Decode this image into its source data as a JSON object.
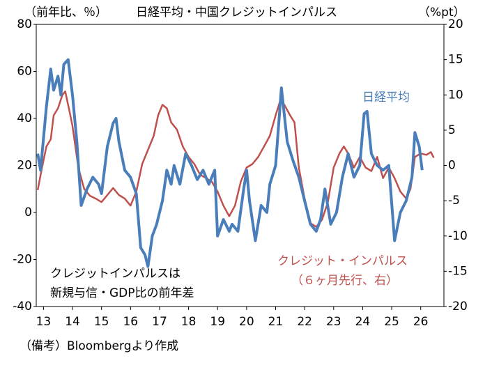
{
  "chart_data": {
    "type": "line",
    "title": "日経平均・中国クレジットインパルス",
    "y_label": "（前年比、％）",
    "y2_label": "（%pt）",
    "xlim": [
      12.75,
      26.8
    ],
    "xticks": [
      13,
      14,
      15,
      16,
      17,
      18,
      19,
      20,
      21,
      22,
      23,
      24,
      25,
      26
    ],
    "ylim": [
      -40,
      80
    ],
    "yticks": [
      -40,
      -20,
      0,
      20,
      40,
      60,
      80
    ],
    "y2lim": [
      -20,
      20
    ],
    "y2ticks": [
      -20,
      -15,
      -10,
      -5,
      0,
      5,
      10,
      15,
      20
    ],
    "grid": false,
    "series": [
      {
        "name": "日経平均",
        "color": "#4a7ebb",
        "axis": "y",
        "x": [
          12.8,
          12.9,
          13.1,
          13.25,
          13.35,
          13.5,
          13.6,
          13.7,
          13.85,
          14.0,
          14.15,
          14.3,
          14.5,
          14.7,
          14.9,
          15.0,
          15.2,
          15.4,
          15.5,
          15.6,
          15.8,
          16.0,
          16.2,
          16.35,
          16.5,
          16.6,
          16.75,
          16.9,
          17.1,
          17.25,
          17.4,
          17.5,
          17.7,
          17.9,
          18.1,
          18.3,
          18.5,
          18.7,
          18.9,
          19.0,
          19.2,
          19.4,
          19.5,
          19.7,
          19.9,
          20.0,
          20.1,
          20.3,
          20.5,
          20.7,
          20.8,
          21.0,
          21.2,
          21.4,
          21.6,
          21.8,
          22.0,
          22.2,
          22.4,
          22.55,
          22.7,
          22.9,
          23.1,
          23.3,
          23.5,
          23.7,
          23.9,
          24.05,
          24.15,
          24.3,
          24.5,
          24.7,
          24.9,
          25.1,
          25.3,
          25.5,
          25.7,
          25.8,
          25.95,
          26.05
        ],
        "values": [
          25,
          18,
          45,
          61,
          52,
          58,
          50,
          63,
          65,
          50,
          30,
          3,
          10,
          15,
          12,
          8,
          28,
          38,
          40,
          30,
          18,
          15,
          8,
          -15,
          -18,
          -23,
          -10,
          -5,
          5,
          18,
          12,
          20,
          12,
          25,
          20,
          14,
          18,
          12,
          18,
          -10,
          -3,
          -8,
          -5,
          -8,
          10,
          18,
          5,
          -12,
          3,
          0,
          12,
          20,
          53,
          30,
          22,
          15,
          5,
          -5,
          -8,
          -3,
          10,
          -5,
          0,
          15,
          25,
          15,
          20,
          42,
          43,
          25,
          20,
          18,
          20,
          -12,
          0,
          5,
          15,
          34,
          28,
          18
        ]
      },
      {
        "name": "クレジット・インパルス",
        "color": "#c0504d",
        "axis": "y2",
        "x": [
          12.8,
          12.95,
          13.1,
          13.25,
          13.35,
          13.5,
          13.65,
          13.75,
          13.9,
          14.0,
          14.2,
          14.4,
          14.6,
          14.8,
          15.0,
          15.2,
          15.4,
          15.6,
          15.8,
          16.0,
          16.2,
          16.4,
          16.6,
          16.8,
          16.95,
          17.1,
          17.25,
          17.4,
          17.6,
          17.8,
          18.0,
          18.2,
          18.4,
          18.6,
          18.8,
          19.0,
          19.2,
          19.4,
          19.6,
          19.8,
          20.0,
          20.2,
          20.4,
          20.6,
          20.8,
          21.0,
          21.15,
          21.3,
          21.5,
          21.65,
          21.8,
          22.0,
          22.2,
          22.4,
          22.6,
          22.8,
          23.0,
          23.2,
          23.35,
          23.5,
          23.7,
          23.9,
          24.1,
          24.3,
          24.5,
          24.7,
          24.9,
          25.1,
          25.3,
          25.5,
          25.65,
          25.8,
          26.0,
          26.2,
          26.35,
          26.45
        ],
        "values": [
          -3.5,
          -0.3,
          2.7,
          3.7,
          7.1,
          8.1,
          10,
          10.5,
          7.6,
          5.6,
          -0.3,
          -3.3,
          -4.3,
          -4.7,
          -5.2,
          -4.2,
          -3.2,
          -4.2,
          -4.7,
          -5.7,
          -3.7,
          0.2,
          2.2,
          4.2,
          7.1,
          8.6,
          8.1,
          6.1,
          5.1,
          2.7,
          1.2,
          0.2,
          -1.3,
          -1.8,
          -2.3,
          -3.7,
          -5.7,
          -7.2,
          -5.7,
          -2.3,
          -0.3,
          0.2,
          1.2,
          2.7,
          4.2,
          7.1,
          9.1,
          8.6,
          7.1,
          6.1,
          -0.3,
          -4.7,
          -8.2,
          -8.7,
          -7.7,
          -5.2,
          -0.3,
          1.7,
          2.7,
          1.7,
          -0.3,
          1.2,
          -0.3,
          -0.8,
          1.2,
          -1.8,
          -0.3,
          -1.8,
          -3.7,
          -4.7,
          -3.3,
          1.2,
          1.7,
          1.5,
          1.9,
          1.1
        ]
      }
    ],
    "annotations": [
      "（６ヶ月先行、右）",
      "クレジットインパルスは",
      "新規与信・GDP比の前年差"
    ],
    "footnote": "（備考）Bloombergより作成"
  }
}
